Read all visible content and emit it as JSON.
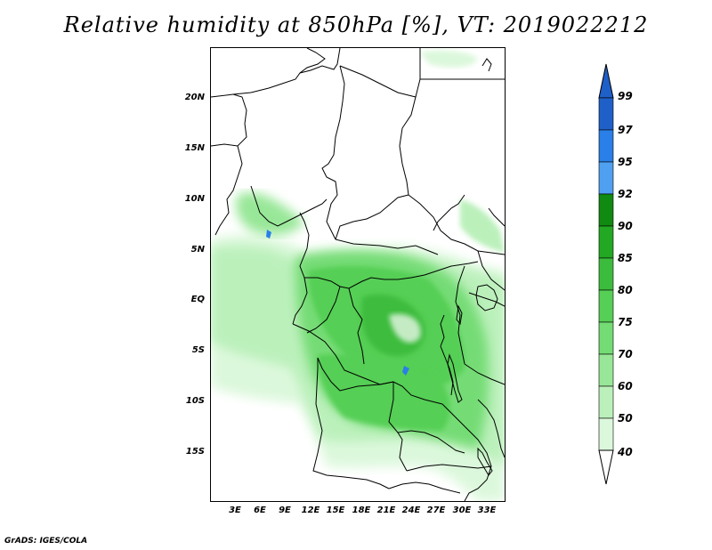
{
  "title": "Relative humidity at 850hPa [%], VT: 2019022212",
  "footer": "GrADS: IGES/COLA",
  "lat_ticks": [
    "20N",
    "15N",
    "10N",
    "5N",
    "EQ",
    "5S",
    "10S",
    "15S"
  ],
  "lon_ticks": [
    "3E",
    "6E",
    "9E",
    "12E",
    "15E",
    "18E",
    "21E",
    "24E",
    "27E",
    "30E",
    "33E"
  ],
  "colorbar": {
    "levels": [
      "99",
      "97",
      "95",
      "92",
      "90",
      "85",
      "80",
      "75",
      "70",
      "60",
      "50",
      "40"
    ],
    "colors": [
      "#1f5fc8",
      "#2a7fe8",
      "#4fa0f0",
      "#108a10",
      "#22a822",
      "#3cbc3c",
      "#55cf55",
      "#74dc74",
      "#98e798",
      "#bbf0bb",
      "#dcf8dc",
      "#f3fdf3"
    ]
  }
}
